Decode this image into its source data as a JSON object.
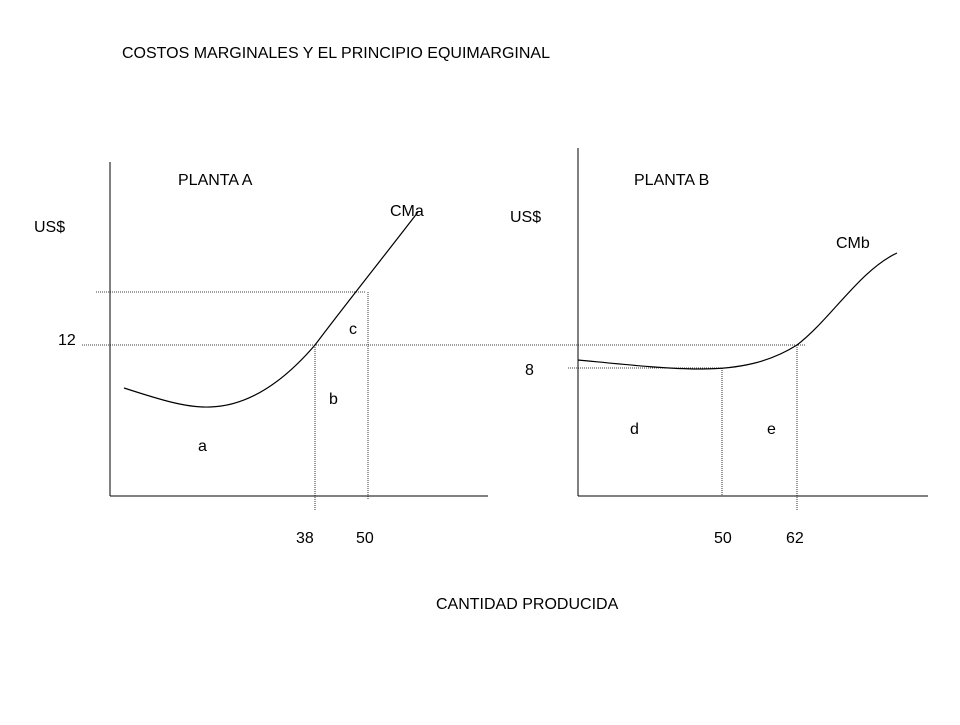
{
  "title": "COSTOS MARGINALES Y EL PRINCIPIO EQUIMARGINAL",
  "x_axis_label": "CANTIDAD PRODUCIDA",
  "colors": {
    "ink": "#000000",
    "background": "#ffffff"
  },
  "plant_a": {
    "label": "PLANTA A",
    "y_label": "US$",
    "curve_label": "CMa",
    "y_tick": "12",
    "x_ticks": [
      "38",
      "50"
    ],
    "areas": {
      "a": "a",
      "b": "b",
      "c": "c"
    }
  },
  "plant_b": {
    "label": "PLANTA B",
    "y_label": "US$",
    "curve_label": "CMb",
    "y_tick": "8",
    "x_ticks": [
      "50",
      "62"
    ],
    "areas": {
      "d": "d",
      "e": "e"
    }
  }
}
